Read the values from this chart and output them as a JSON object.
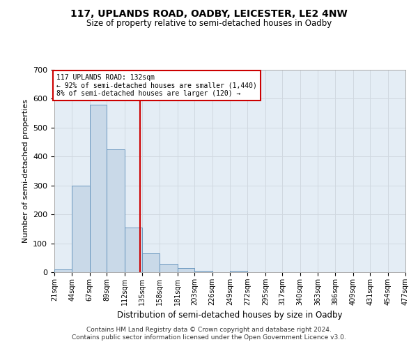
{
  "title1": "117, UPLANDS ROAD, OADBY, LEICESTER, LE2 4NW",
  "title2": "Size of property relative to semi-detached houses in Oadby",
  "xlabel": "Distribution of semi-detached houses by size in Oadby",
  "ylabel": "Number of semi-detached properties",
  "footer1": "Contains HM Land Registry data © Crown copyright and database right 2024.",
  "footer2": "Contains public sector information licensed under the Open Government Licence v3.0.",
  "annotation_line1": "117 UPLANDS ROAD: 132sqm",
  "annotation_line2": "← 92% of semi-detached houses are smaller (1,440)",
  "annotation_line3": "8% of semi-detached houses are larger (120) →",
  "property_size": 132,
  "bin_edges": [
    21,
    44,
    67,
    89,
    112,
    135,
    158,
    181,
    203,
    226,
    249,
    272,
    295,
    317,
    340,
    363,
    386,
    409,
    431,
    454,
    477
  ],
  "bar_heights": [
    10,
    300,
    580,
    425,
    155,
    65,
    30,
    15,
    5,
    0,
    5,
    0,
    0,
    0,
    0,
    0,
    0,
    0,
    0,
    0
  ],
  "bar_color": "#c9d9e8",
  "bar_edge_color": "#5b8db8",
  "grid_color": "#d0d8e0",
  "vline_color": "#cc0000",
  "annotation_box_color": "#cc0000",
  "ylim": [
    0,
    700
  ],
  "yticks": [
    0,
    100,
    200,
    300,
    400,
    500,
    600,
    700
  ],
  "background_color": "#e4edf5"
}
